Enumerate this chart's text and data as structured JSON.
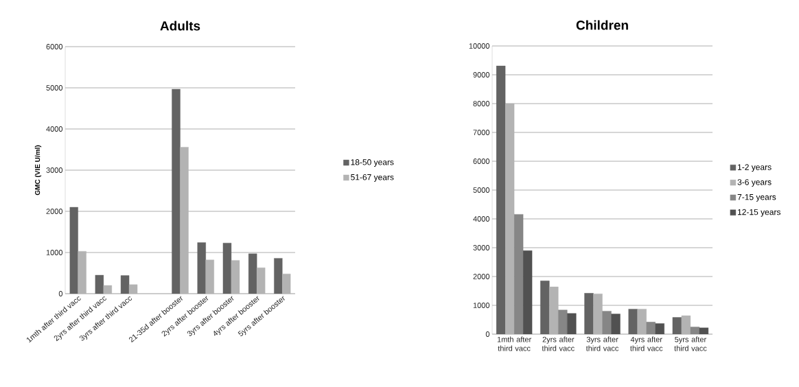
{
  "chart_data": [
    {
      "type": "bar",
      "title": "Adults",
      "ylabel": "GMC (VIE U/ml)",
      "categories": [
        "1mth after third vacc",
        "2yrs after third vacc",
        "3yrs after third vacc",
        null,
        "21-35d after booster",
        "2yrs after booster",
        "3yrs after booster",
        "4yrs after booster",
        "5yrs after booster"
      ],
      "series": [
        {
          "name": "18-50 years",
          "color": "#636363",
          "values": [
            2100,
            450,
            440,
            null,
            4970,
            1240,
            1230,
            970,
            860
          ]
        },
        {
          "name": "51-67 years",
          "color": "#b3b3b3",
          "values": [
            1030,
            200,
            220,
            null,
            3560,
            820,
            810,
            630,
            480
          ]
        }
      ],
      "ylim": [
        0,
        6000
      ],
      "yticks": [
        0,
        1000,
        2000,
        3000,
        4000,
        5000,
        6000
      ],
      "grid": "y",
      "legend": "right"
    },
    {
      "type": "bar",
      "title": "Children",
      "categories": [
        "1mth after third vacc",
        "2yrs after third vacc",
        "3yrs after third vacc",
        "4yrs after third vacc",
        "5yrs after third vacc"
      ],
      "series": [
        {
          "name": "1-2 years",
          "color": "#636363",
          "values": [
            9310,
            1850,
            1420,
            870,
            580
          ]
        },
        {
          "name": "3-6 years",
          "color": "#b3b3b3",
          "values": [
            8000,
            1640,
            1400,
            870,
            640
          ]
        },
        {
          "name": "7-15 years",
          "color": "#868686",
          "values": [
            4160,
            840,
            800,
            420,
            250
          ]
        },
        {
          "name": "12-15 years",
          "color": "#515151",
          "values": [
            2900,
            720,
            700,
            370,
            220
          ]
        }
      ],
      "ylim": [
        0,
        10000
      ],
      "yticks": [
        0,
        1000,
        2000,
        3000,
        4000,
        5000,
        6000,
        7000,
        8000,
        9000,
        10000
      ],
      "grid": "y",
      "legend": "right"
    }
  ]
}
